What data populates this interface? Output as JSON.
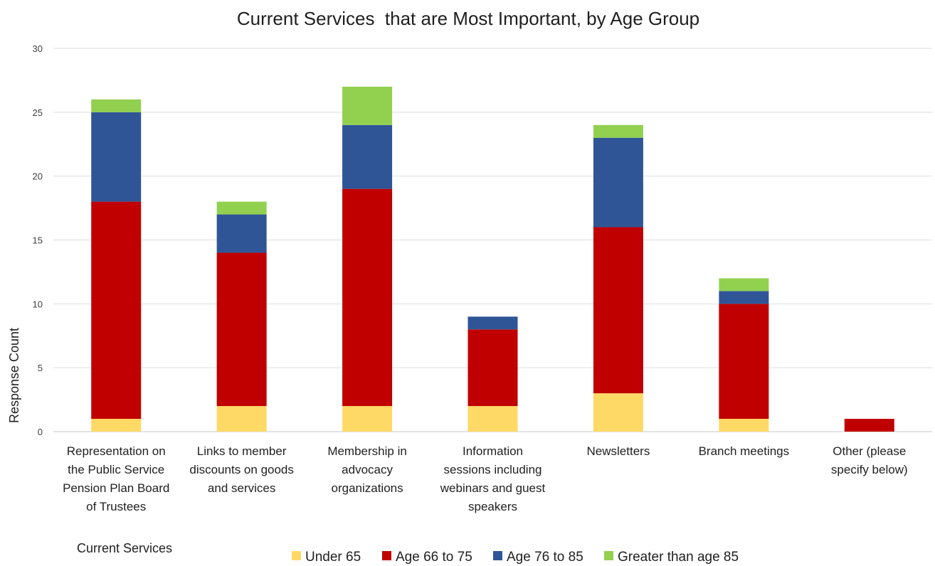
{
  "chart_data": {
    "type": "bar",
    "stacked": true,
    "title": "Current Services  that are Most Important, by Age Group",
    "xlabel": "Current Services",
    "ylabel": "Response Count",
    "ylim": [
      0,
      30
    ],
    "yticks": [
      0,
      5,
      10,
      15,
      20,
      25,
      30
    ],
    "grid": true,
    "legend_position": "bottom",
    "categories": [
      "Representation on the Public Service Pension Plan Board of Trustees",
      "Links to member discounts on goods and services",
      "Membership in advocacy organizations",
      "Information sessions including webinars and guest speakers",
      "Newsletters",
      "Branch meetings",
      "Other (please specify below)"
    ],
    "category_lines": [
      [
        "Representation on",
        "the Public Service",
        "Pension Plan Board",
        "of Trustees"
      ],
      [
        "Links to member",
        "discounts on goods",
        "and services"
      ],
      [
        "Membership in",
        "advocacy",
        "organizations"
      ],
      [
        "Information",
        "sessions including",
        "webinars and guest",
        "speakers"
      ],
      [
        "Newsletters"
      ],
      [
        "Branch meetings"
      ],
      [
        "Other (please",
        "specify below)"
      ]
    ],
    "series": [
      {
        "name": "Under 65",
        "color": "#FFD966",
        "values": [
          1,
          2,
          2,
          2,
          3,
          1,
          0
        ]
      },
      {
        "name": "Age 66 to 75",
        "color": "#C00000",
        "values": [
          17,
          12,
          17,
          6,
          13,
          9,
          1
        ]
      },
      {
        "name": "Age 76 to 85",
        "color": "#2F5597",
        "values": [
          7,
          3,
          5,
          1,
          7,
          1,
          0
        ]
      },
      {
        "name": "Greater than age 85",
        "color": "#92D050",
        "values": [
          1,
          1,
          3,
          0,
          1,
          1,
          0
        ]
      }
    ]
  }
}
